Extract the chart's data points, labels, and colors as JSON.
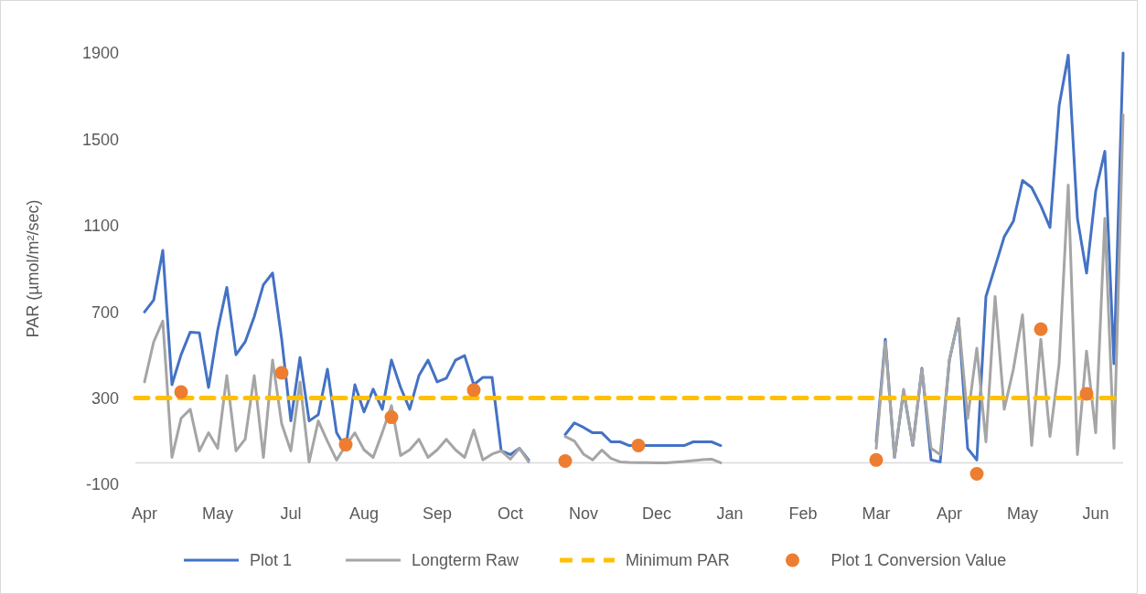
{
  "chart_data": {
    "type": "line",
    "ylabel": "PAR (µmol/m²/sec)",
    "categories": [
      null,
      "Apr",
      null,
      null,
      null,
      null,
      null,
      null,
      null,
      "May",
      null,
      null,
      null,
      null,
      null,
      null,
      null,
      "Jul",
      null,
      null,
      null,
      null,
      null,
      null,
      null,
      "Aug",
      null,
      null,
      null,
      null,
      null,
      null,
      null,
      "Sep",
      null,
      null,
      null,
      null,
      null,
      null,
      null,
      "Oct",
      null,
      null,
      null,
      null,
      null,
      null,
      null,
      "Nov",
      null,
      null,
      null,
      null,
      null,
      null,
      null,
      "Dec",
      null,
      null,
      null,
      null,
      null,
      null,
      null,
      "Jan",
      null,
      null,
      null,
      null,
      null,
      null,
      null,
      "Feb",
      null,
      null,
      null,
      null,
      null,
      null,
      null,
      "Mar",
      null,
      null,
      null,
      null,
      null,
      null,
      null,
      "Apr",
      null,
      null,
      null,
      null,
      null,
      null,
      null,
      "May",
      null,
      null,
      null,
      null,
      null,
      null,
      null,
      "Jun",
      null,
      null,
      null
    ],
    "ylim": [
      -100,
      1900
    ],
    "yticks": [
      -100,
      300,
      700,
      1100,
      1500,
      1900
    ],
    "grid": false,
    "legend": "bottom",
    "series": [
      {
        "name": "Plot 1",
        "color": "#4472c4",
        "values": [
          null,
          699,
          754,
          985,
          362,
          501,
          606,
          602,
          349,
          615,
          813,
          501,
          560,
          678,
          825,
          880,
          573,
          194,
          488,
          194,
          223,
          434,
          139,
          67,
          362,
          236,
          341,
          248,
          476,
          349,
          248,
          404,
          476,
          375,
          392,
          476,
          497,
          362,
          396,
          396,
          55,
          38,
          67,
          13,
          null,
          null,
          null,
          131,
          185,
          164,
          139,
          139,
          97,
          97,
          80,
          80,
          80,
          80,
          80,
          80,
          80,
          97,
          97,
          97,
          80,
          null,
          null,
          null,
          null,
          null,
          null,
          null,
          null,
          null,
          null,
          null,
          null,
          null,
          null,
          null,
          null,
          97,
          573,
          25,
          333,
          80,
          438,
          13,
          4,
          476,
          669,
          67,
          13,
          771,
          909,
          1048,
          1120,
          1309,
          1276,
          1192,
          1091,
          1655,
          1890,
          1133,
          880,
          1259,
          1444,
          459,
          1900
        ]
      },
      {
        "name": "Longterm Raw",
        "color": "#a5a5a5",
        "values": [
          null,
          375,
          560,
          657,
          25,
          206,
          248,
          55,
          139,
          67,
          404,
          55,
          109,
          404,
          25,
          476,
          181,
          55,
          375,
          4,
          194,
          100,
          13,
          80,
          139,
          60,
          25,
          140,
          265,
          34,
          60,
          109,
          25,
          60,
          109,
          60,
          25,
          152,
          13,
          40,
          55,
          17,
          67,
          4,
          null,
          null,
          null,
          122,
          101,
          40,
          13,
          59,
          20,
          4,
          2,
          1,
          1,
          0,
          0,
          3,
          6,
          10,
          14,
          17,
          0,
          null,
          null,
          null,
          null,
          null,
          null,
          null,
          null,
          null,
          null,
          null,
          null,
          null,
          null,
          null,
          null,
          67,
          560,
          25,
          341,
          80,
          434,
          67,
          38,
          476,
          669,
          206,
          531,
          97,
          771,
          248,
          434,
          686,
          80,
          573,
          122,
          459,
          1288,
          38,
          518,
          139,
          1133,
          67,
          1613
        ]
      },
      {
        "name": "Minimum PAR",
        "color": "#ffc000",
        "line_style": "dashed",
        "values": [
          300,
          300,
          300,
          300,
          300,
          300,
          300,
          300,
          300,
          300,
          300,
          300,
          300,
          300,
          300,
          300,
          300,
          300,
          300,
          300,
          300,
          300,
          300,
          300,
          300,
          300,
          300,
          300,
          300,
          300,
          300,
          300,
          300,
          300,
          300,
          300,
          300,
          300,
          300,
          300,
          300,
          300,
          300,
          300,
          300,
          300,
          300,
          300,
          300,
          300,
          300,
          300,
          300,
          300,
          300,
          300,
          300,
          300,
          300,
          300,
          300,
          300,
          300,
          300,
          300,
          300,
          300,
          300,
          300,
          300,
          300,
          300,
          300,
          300,
          300,
          300,
          300,
          300,
          300,
          300,
          300,
          300,
          300,
          300,
          300,
          300,
          300,
          300,
          300,
          300,
          300,
          300,
          300,
          300,
          300,
          300,
          300,
          300,
          300,
          300,
          300,
          300,
          300,
          300,
          300,
          300,
          300,
          300,
          300
        ]
      },
      {
        "name": "Plot 1 Conversion Value",
        "type": "scatter",
        "marker": "circle",
        "color": "#ed7d31",
        "values": [
          null,
          null,
          null,
          null,
          null,
          328,
          null,
          null,
          null,
          null,
          null,
          null,
          null,
          null,
          null,
          null,
          417,
          null,
          null,
          null,
          null,
          null,
          null,
          84,
          null,
          null,
          null,
          null,
          211,
          null,
          null,
          null,
          null,
          null,
          null,
          null,
          null,
          337,
          null,
          null,
          null,
          null,
          null,
          null,
          null,
          null,
          null,
          8,
          null,
          null,
          null,
          null,
          null,
          null,
          null,
          80,
          null,
          null,
          null,
          null,
          null,
          null,
          null,
          null,
          null,
          null,
          null,
          null,
          null,
          null,
          null,
          null,
          null,
          null,
          null,
          null,
          null,
          null,
          null,
          null,
          null,
          13,
          null,
          null,
          null,
          null,
          null,
          null,
          null,
          null,
          null,
          null,
          -51,
          null,
          null,
          null,
          null,
          null,
          null,
          619,
          null,
          null,
          null,
          null,
          320,
          null,
          null,
          null,
          null
        ]
      }
    ]
  }
}
